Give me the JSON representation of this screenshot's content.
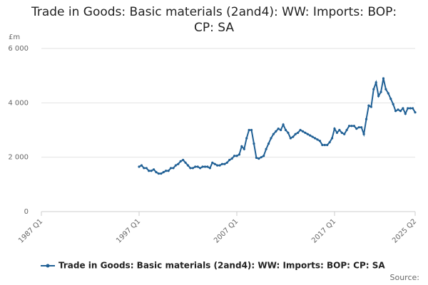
{
  "chart_data": {
    "type": "line",
    "title": "Trade in Goods: Basic materials (2and4): WW: Imports: BOP: CP: SA",
    "y_unit": "£m",
    "source_label": "Source:",
    "categories": [
      "1987 Q1",
      null,
      null,
      null,
      null,
      null,
      null,
      null,
      null,
      null,
      null,
      null,
      null,
      null,
      null,
      null,
      null,
      null,
      null,
      null,
      null,
      null,
      null,
      null,
      null,
      null,
      null,
      null,
      null,
      null,
      null,
      null,
      null,
      null,
      null,
      null,
      null,
      null,
      null,
      null,
      "1997 Q1",
      null,
      null,
      null,
      null,
      null,
      null,
      null,
      null,
      null,
      null,
      null,
      null,
      null,
      null,
      null,
      null,
      null,
      null,
      null,
      null,
      null,
      null,
      null,
      null,
      null,
      null,
      null,
      null,
      null,
      null,
      null,
      null,
      null,
      null,
      null,
      null,
      null,
      null,
      null,
      "2007 Q1",
      null,
      null,
      null,
      null,
      null,
      null,
      null,
      null,
      null,
      null,
      null,
      null,
      null,
      null,
      null,
      null,
      null,
      null,
      null,
      null,
      null,
      null,
      null,
      null,
      null,
      null,
      null,
      null,
      null,
      null,
      null,
      null,
      null,
      null,
      null,
      null,
      null,
      null,
      null,
      "2017 Q1",
      null,
      null,
      null,
      null,
      null,
      null,
      null,
      null,
      null,
      null,
      null,
      null,
      null,
      null,
      null,
      null,
      null,
      null,
      null,
      null,
      null,
      null,
      null,
      null,
      null,
      null,
      null,
      null,
      null,
      null,
      null,
      null,
      "2025 Q2"
    ],
    "series": [
      {
        "name": "Trade in Goods: Basic materials (2and4): WW: Imports: BOP: CP: SA",
        "color": "#206095",
        "values": [
          null,
          null,
          null,
          null,
          null,
          null,
          null,
          null,
          null,
          null,
          null,
          null,
          null,
          null,
          null,
          null,
          null,
          null,
          null,
          null,
          null,
          null,
          null,
          null,
          null,
          null,
          null,
          null,
          null,
          null,
          null,
          null,
          null,
          null,
          null,
          null,
          null,
          null,
          null,
          null,
          1650,
          1700,
          1600,
          1600,
          1500,
          1500,
          1550,
          1450,
          1400,
          1400,
          1450,
          1500,
          1500,
          1600,
          1600,
          1700,
          1750,
          1850,
          1900,
          1800,
          1700,
          1600,
          1600,
          1650,
          1650,
          1600,
          1650,
          1650,
          1650,
          1600,
          1800,
          1750,
          1700,
          1700,
          1750,
          1750,
          1800,
          1900,
          1950,
          2050,
          2050,
          2100,
          2400,
          2300,
          2700,
          3000,
          3000,
          2500,
          1980,
          1950,
          2000,
          2050,
          2300,
          2500,
          2700,
          2850,
          2950,
          3050,
          3000,
          3200,
          3000,
          2900,
          2700,
          2750,
          2850,
          2900,
          3000,
          2950,
          2900,
          2850,
          2800,
          2750,
          2700,
          2650,
          2600,
          2450,
          2450,
          2450,
          2550,
          2700,
          3050,
          2900,
          3000,
          2900,
          2850,
          3000,
          3150,
          3150,
          3150,
          3050,
          3100,
          3100,
          2850,
          3400,
          3900,
          3850,
          4500,
          4750,
          4250,
          4400,
          4900,
          4500,
          4350,
          4150,
          3950,
          3700,
          3750,
          3700,
          3800,
          3600,
          3800,
          3800,
          3800,
          3650
        ]
      }
    ],
    "ylim": [
      0,
      6000
    ],
    "yticks": [
      0,
      {
        "value": 2000,
        "label": "2 000"
      },
      {
        "value": 4000,
        "label": "4 000"
      },
      {
        "value": 6000,
        "label": "6 000"
      }
    ],
    "grid": true,
    "legend": "bottom"
  }
}
